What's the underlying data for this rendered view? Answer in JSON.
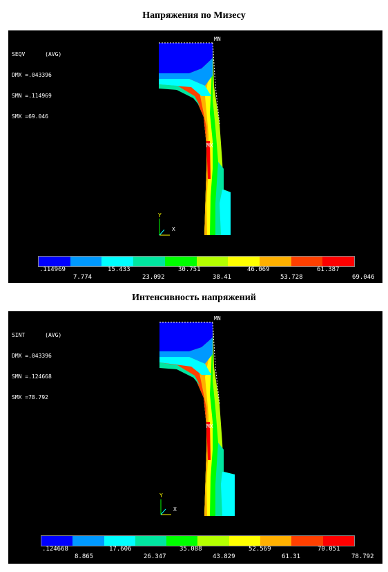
{
  "colors": [
    "#0000ff",
    "#0099ff",
    "#00ffff",
    "#00e6a0",
    "#00ff00",
    "#b4ff00",
    "#ffff00",
    "#ffb000",
    "#ff4000",
    "#ff0000"
  ],
  "plots": [
    {
      "title": "Напряжения по Мизесу",
      "info_lines": [
        "SEQV      (AVG)",
        "DMX =.043396",
        "SMN =.114969",
        "SMX =69.046"
      ],
      "mn": "MN",
      "mx": "MX",
      "axis_y": "Y",
      "axis_x": "X",
      "ticks_top": [
        ".114969",
        "15.433",
        "30.751",
        "46.069",
        "61.387"
      ],
      "ticks_bottom": [
        "7.774",
        "23.092",
        "38.41",
        "53.728",
        "69.046"
      ]
    },
    {
      "title": "Интенсивность напряжений",
      "info_lines": [
        "SINT      (AVG)",
        "DMX =.043396",
        "SMN =.124668",
        "SMX =78.792"
      ],
      "mn": "MN",
      "mx": "MX",
      "axis_y": "Y",
      "axis_x": "X",
      "ticks_top": [
        ".124668",
        "17.606",
        "35.088",
        "52.569",
        "70.051"
      ],
      "ticks_bottom": [
        "8.865",
        "26.347",
        "43.829",
        "61.31",
        "78.792"
      ]
    }
  ]
}
